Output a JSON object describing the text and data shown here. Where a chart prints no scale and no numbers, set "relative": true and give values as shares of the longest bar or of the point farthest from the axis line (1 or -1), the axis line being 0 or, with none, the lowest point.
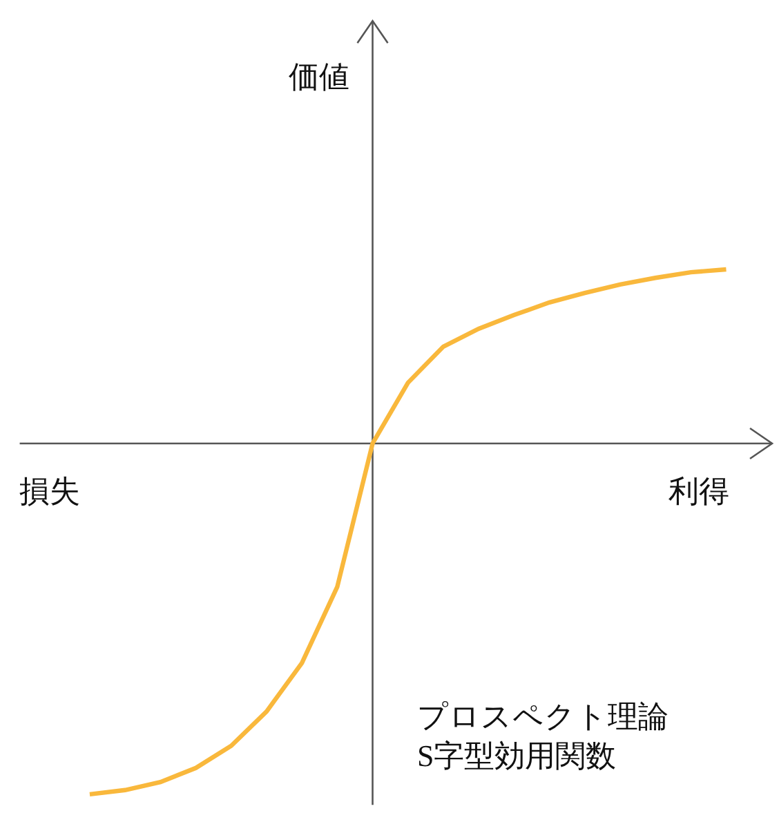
{
  "chart_data": {
    "type": "line",
    "relative": true,
    "xlabel": "利得",
    "annotations": [
      "価値",
      "損失",
      "プロスペクト理論\nS字型効用関数"
    ],
    "categories": [
      null,
      null,
      null,
      null,
      null,
      null,
      null,
      null,
      null,
      null,
      null,
      null,
      null,
      null,
      null,
      null,
      null,
      null,
      null
    ],
    "series": [
      {
        "color": "#f9b83c",
        "values": [
          -1,
          -0.988,
          -0.965,
          -0.925,
          -0.862,
          -0.764,
          -0.626,
          -0.409,
          0,
          0.173,
          0.276,
          0.327,
          0.366,
          0.402,
          0.429,
          0.453,
          0.472,
          0.488,
          0.496
        ]
      }
    ],
    "marker": "none",
    "line_style": "solid"
  }
}
